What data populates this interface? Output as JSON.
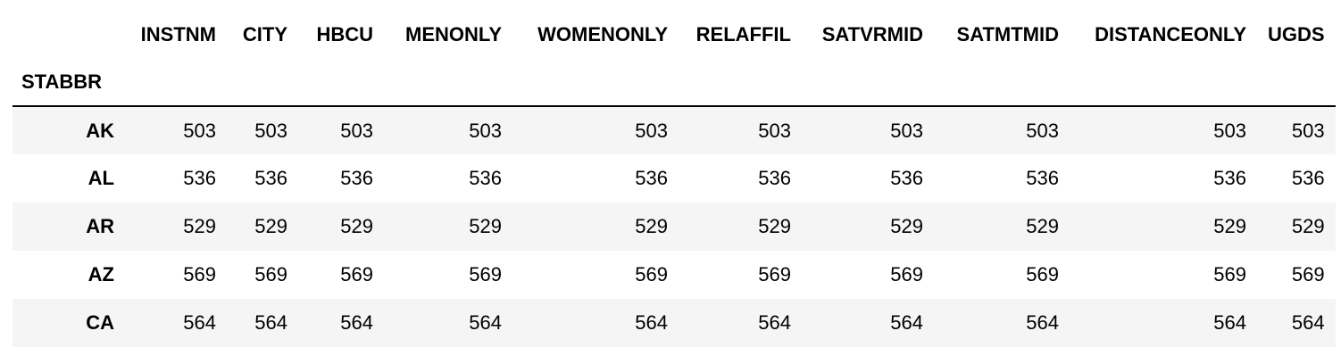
{
  "table": {
    "index_name": "STABBR",
    "columns": [
      "INSTNM",
      "CITY",
      "HBCU",
      "MENONLY",
      "WOMENONLY",
      "RELAFFIL",
      "SATVRMID",
      "SATMTMID",
      "DISTANCEONLY",
      "UGDS"
    ],
    "rows": [
      {
        "index": "AK",
        "values": [
          "503",
          "503",
          "503",
          "503",
          "503",
          "503",
          "503",
          "503",
          "503",
          "503"
        ]
      },
      {
        "index": "AL",
        "values": [
          "536",
          "536",
          "536",
          "536",
          "536",
          "536",
          "536",
          "536",
          "536",
          "536"
        ]
      },
      {
        "index": "AR",
        "values": [
          "529",
          "529",
          "529",
          "529",
          "529",
          "529",
          "529",
          "529",
          "529",
          "529"
        ]
      },
      {
        "index": "AZ",
        "values": [
          "569",
          "569",
          "569",
          "569",
          "569",
          "569",
          "569",
          "569",
          "569",
          "569"
        ]
      },
      {
        "index": "CA",
        "values": [
          "564",
          "564",
          "564",
          "564",
          "564",
          "564",
          "564",
          "564",
          "564",
          "564"
        ]
      }
    ]
  }
}
